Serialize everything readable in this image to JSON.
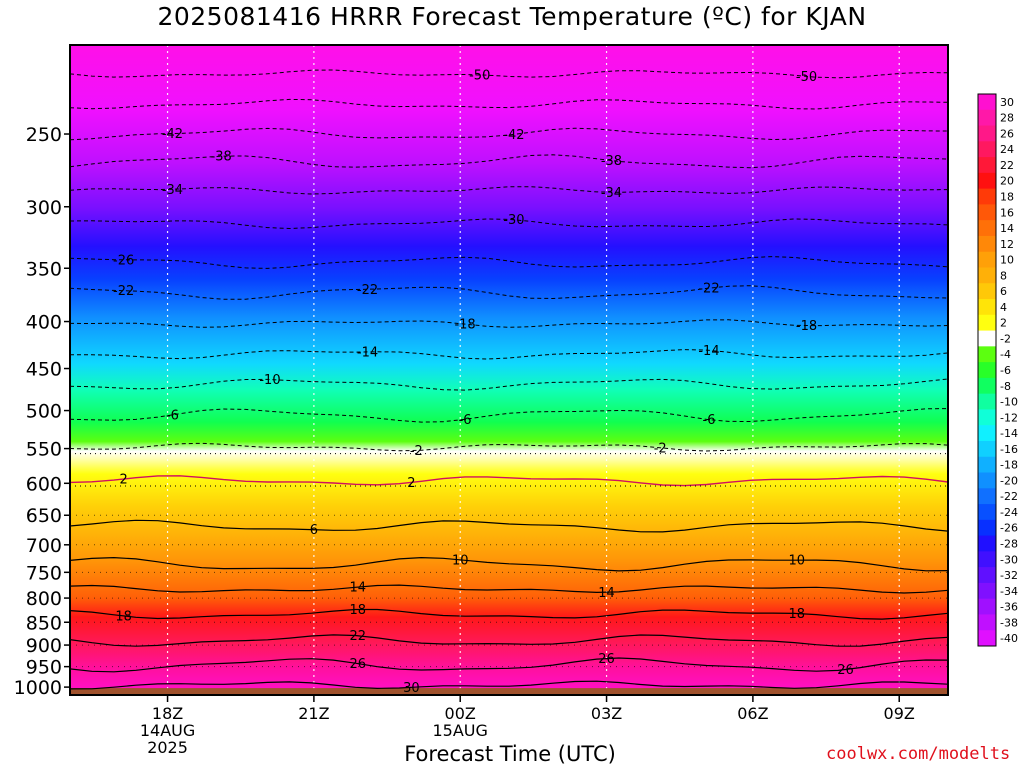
{
  "chart_data": {
    "type": "contour",
    "title": "2025081416 HRRR Forecast Temperature (ºC) for KJAN",
    "xlabel": "Forecast Time (UTC)",
    "ylabel": "",
    "credit": "coolwx.com/modelts",
    "y_scale": "log-pressure",
    "y_range": [
      1020,
      200
    ],
    "y_ticks": [
      250,
      300,
      350,
      400,
      450,
      500,
      550,
      600,
      650,
      700,
      750,
      800,
      850,
      900,
      950,
      1000
    ],
    "x_range": [
      16,
      34
    ],
    "x_ticks": [
      {
        "t": 18,
        "lines": [
          "18Z",
          "14AUG",
          "2025"
        ]
      },
      {
        "t": 21,
        "lines": [
          "21Z"
        ]
      },
      {
        "t": 24,
        "lines": [
          "00Z",
          "15AUG"
        ]
      },
      {
        "t": 27,
        "lines": [
          "03Z"
        ]
      },
      {
        "t": 30,
        "lines": [
          "06Z"
        ]
      },
      {
        "t": 33,
        "lines": [
          "09Z"
        ]
      }
    ],
    "colorbar": {
      "labels": [
        "30",
        "28",
        "26",
        "24",
        "22",
        "20",
        "18",
        "16",
        "14",
        "12",
        "10",
        "8",
        "6",
        "4",
        "2",
        "-2",
        "-4",
        "-6",
        "-8",
        "-10",
        "-12",
        "-14",
        "-16",
        "-18",
        "-20",
        "-22",
        "-24",
        "-26",
        "-28",
        "-30",
        "-32",
        "-34",
        "-36",
        "-38",
        "-40"
      ],
      "colors": [
        "#ff10d0",
        "#ff18a8",
        "#ff1888",
        "#ff1860",
        "#ff1838",
        "#ff1010",
        "#ff3a08",
        "#ff5808",
        "#ff7008",
        "#ff8808",
        "#ffa008",
        "#ffb008",
        "#ffc808",
        "#ffe408",
        "#ffff10",
        "#ffffff",
        "#5cff10",
        "#28ff28",
        "#10ff60",
        "#10ffa0",
        "#10ffd8",
        "#10f0ff",
        "#10d0ff",
        "#10b0ff",
        "#1090ff",
        "#1070ff",
        "#0850ff",
        "#0830ff",
        "#2010ff",
        "#4010ff",
        "#6010ff",
        "#8010ff",
        "#a010ff",
        "#c010ff",
        "#e010ff"
      ]
    },
    "isotherms": [
      {
        "value": -50,
        "p": 215,
        "labels": [
          [
            24.4,
            "-50"
          ],
          [
            31.1,
            "-50"
          ]
        ]
      },
      {
        "value": -46,
        "p": 232,
        "labels": []
      },
      {
        "value": -42,
        "p": 250,
        "labels": [
          [
            18.1,
            "-42"
          ],
          [
            25.1,
            "-42"
          ]
        ]
      },
      {
        "value": -38,
        "p": 268,
        "labels": [
          [
            19.1,
            "-38"
          ],
          [
            27.1,
            "-38"
          ]
        ]
      },
      {
        "value": -34,
        "p": 288,
        "labels": [
          [
            18.1,
            "-34"
          ],
          [
            27.1,
            "-34"
          ]
        ]
      },
      {
        "value": -30,
        "p": 313,
        "labels": [
          [
            25.1,
            "-30"
          ]
        ]
      },
      {
        "value": -26,
        "p": 345,
        "labels": [
          [
            17.1,
            "-26"
          ]
        ]
      },
      {
        "value": -22,
        "p": 372,
        "labels": [
          [
            17.1,
            "-22"
          ],
          [
            22.1,
            "-22"
          ],
          [
            29.1,
            "-22"
          ]
        ]
      },
      {
        "value": -18,
        "p": 402,
        "labels": [
          [
            24.1,
            "-18"
          ],
          [
            31.1,
            "-18"
          ]
        ]
      },
      {
        "value": -14,
        "p": 434,
        "labels": [
          [
            22.1,
            "-14"
          ],
          [
            29.1,
            "-14"
          ]
        ]
      },
      {
        "value": -10,
        "p": 468,
        "labels": [
          [
            20.1,
            "-10"
          ]
        ]
      },
      {
        "value": -6,
        "p": 506,
        "labels": [
          [
            18.1,
            "-6"
          ],
          [
            24.1,
            "-6"
          ],
          [
            29.1,
            "-6"
          ]
        ]
      },
      {
        "value": -2,
        "p": 548,
        "labels": [
          [
            23.1,
            "-2"
          ],
          [
            28.1,
            "-2"
          ]
        ]
      },
      {
        "value": 2,
        "p": 596,
        "labels": [
          [
            17.1,
            "2"
          ],
          [
            23.0,
            "2"
          ]
        ]
      },
      {
        "value": 6,
        "p": 668,
        "labels": [
          [
            21.0,
            "6"
          ]
        ]
      },
      {
        "value": 10,
        "p": 735,
        "labels": [
          [
            24.0,
            "10"
          ],
          [
            30.9,
            "10"
          ]
        ]
      },
      {
        "value": 14,
        "p": 782,
        "labels": [
          [
            21.9,
            "14"
          ],
          [
            27.0,
            "14"
          ]
        ]
      },
      {
        "value": 18,
        "p": 833,
        "labels": [
          [
            17.1,
            "18"
          ],
          [
            21.9,
            "18"
          ],
          [
            30.9,
            "18"
          ]
        ]
      },
      {
        "value": 22,
        "p": 890,
        "labels": [
          [
            21.9,
            "22"
          ]
        ]
      },
      {
        "value": 26,
        "p": 946,
        "labels": [
          [
            21.9,
            "26"
          ],
          [
            27.0,
            "26"
          ],
          [
            31.9,
            "26"
          ]
        ]
      },
      {
        "value": 30,
        "p": 995,
        "labels": [
          [
            23.0,
            "30"
          ]
        ]
      }
    ]
  }
}
